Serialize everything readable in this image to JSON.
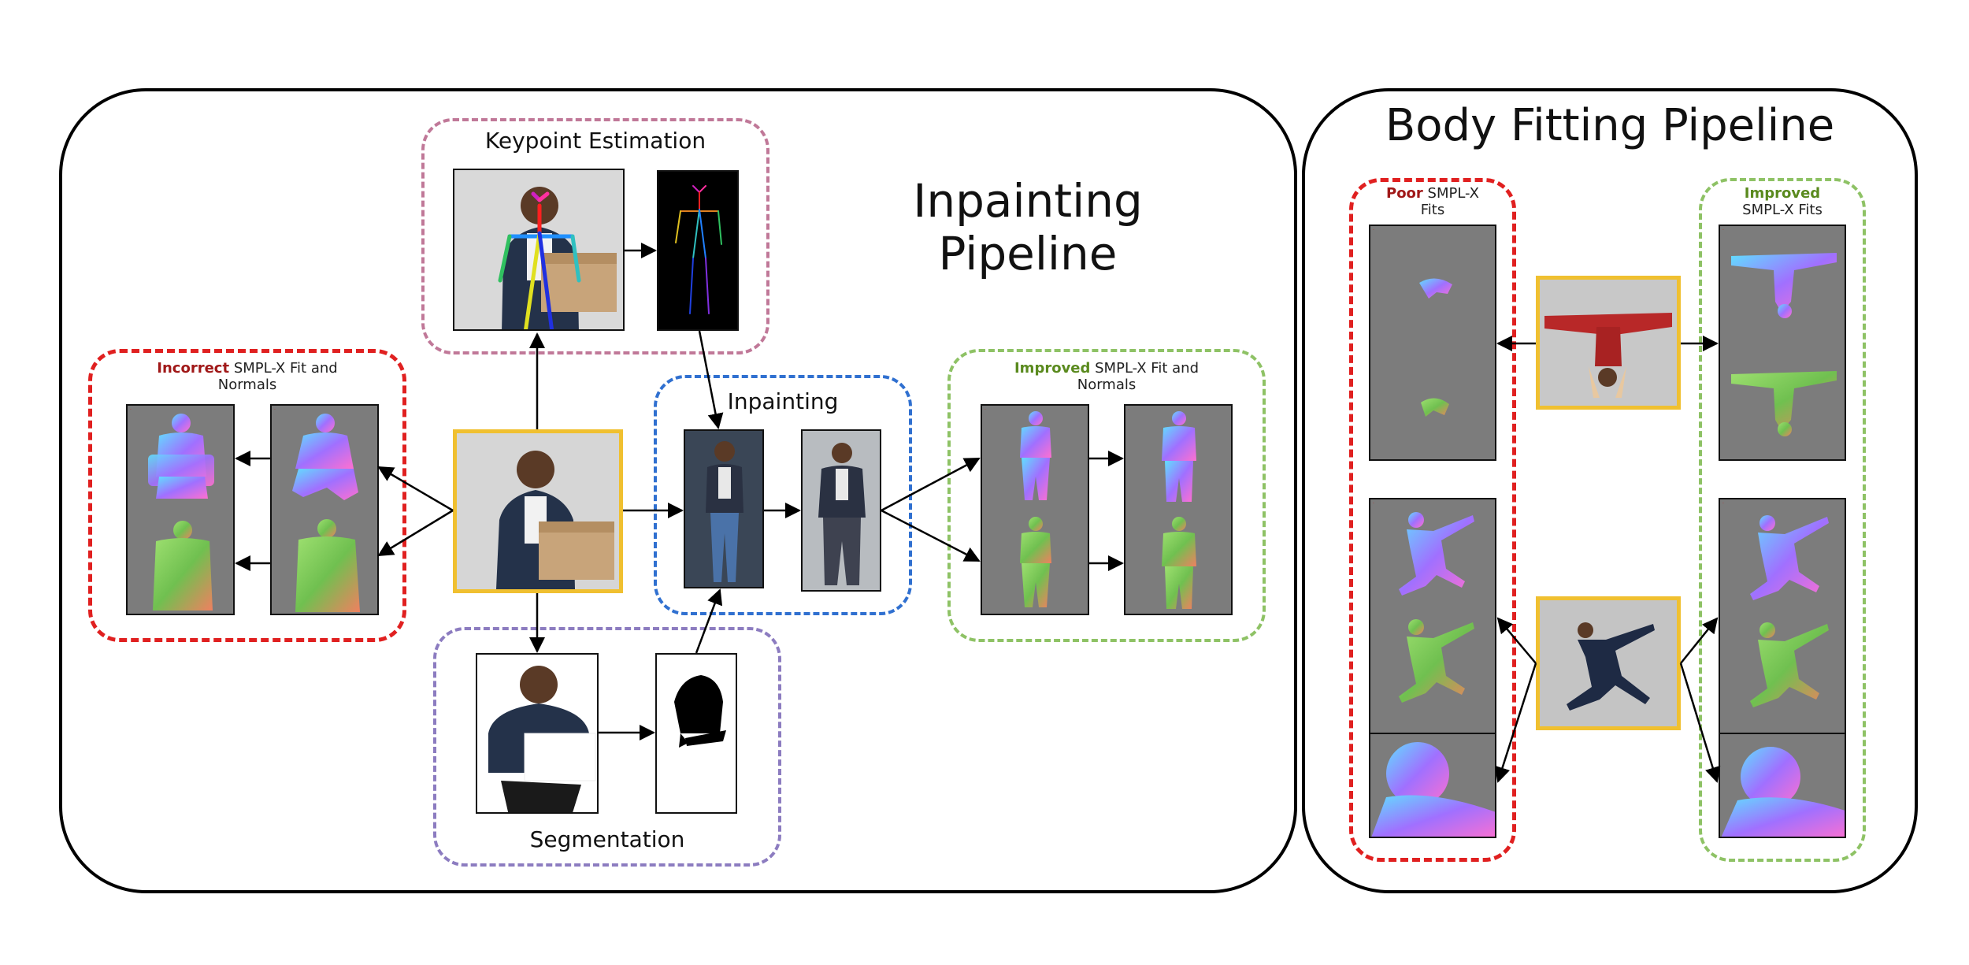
{
  "inpainting": {
    "title_line1": "Inpainting",
    "title_line2": "Pipeline",
    "keypoint_title": "Keypoint Estimation",
    "inpaint_title": "Inpainting",
    "segmentation_title": "Segmentation",
    "incorrect": {
      "highlight": "Incorrect",
      "rest": " SMPL-X Fit and",
      "line2": "Normals"
    },
    "improved": {
      "highlight": "Improved",
      "rest": " SMPL-X Fit and",
      "line2": "Normals"
    }
  },
  "body_fitting": {
    "title": "Body Fitting Pipeline",
    "poor": {
      "highlight": "Poor",
      "rest": " SMPL-X",
      "line2": "Fits"
    },
    "improved": {
      "highlight": "Improved",
      "line2": "SMPL-X Fits"
    }
  },
  "colors": {
    "incorrect_red": "#a01818",
    "improved_green": "#5a8a1e",
    "red_dash": "#e02020",
    "green_dash": "#8ec265",
    "pink_dash": "#c07898",
    "blue_dash": "#3070d0",
    "purple_dash": "#8c7cc0",
    "yellow_border": "#f0c030",
    "render_bg": "#7c7c7c"
  }
}
